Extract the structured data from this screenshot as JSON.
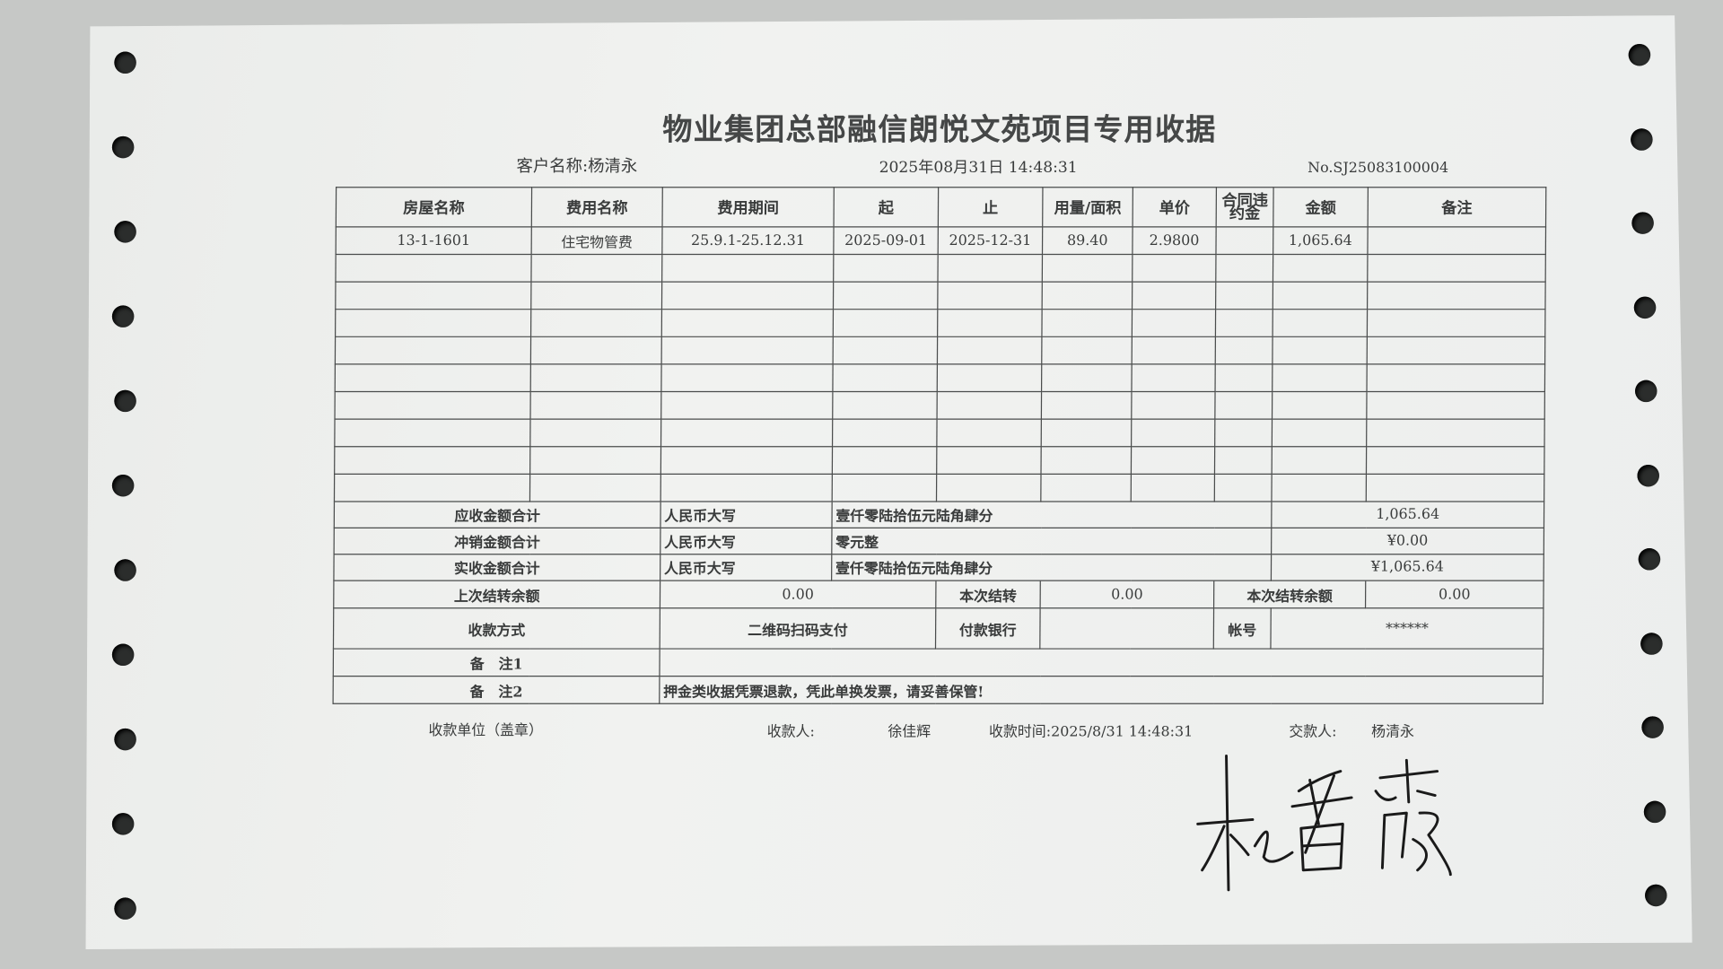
{
  "receipt": {
    "title": "物业集团总部融信朗悦文苑项目专用收据",
    "customer": "客户名称:杨清永",
    "datetime": "2025年08月31日 14:48:31",
    "number": "No.SJ25083100004",
    "columns": [
      "房屋名称",
      "费用名称",
      "费用期间",
      "起",
      "止",
      "用量/面积",
      "单价",
      "合同违约金",
      "金额",
      "备注"
    ],
    "rows": [
      [
        "13-1-1601",
        "住宅物管费",
        "25.9.1-25.12.31",
        "2025-09-01",
        "2025-12-31",
        "89.40",
        "2.9800",
        "",
        "1,065.64",
        ""
      ]
    ],
    "totals": [
      {
        "label": "应收金额合计",
        "rmb_label": "人民币大写",
        "words": "壹仟零陆拾伍元陆角肆分",
        "amount": "1,065.64"
      },
      {
        "label": "冲销金额合计",
        "rmb_label": "人民币大写",
        "words": "零元整",
        "amount": "¥0.00"
      },
      {
        "label": "实收金额合计",
        "rmb_label": "人民币大写",
        "words": "壹仟零陆拾伍元陆角肆分",
        "amount": "¥1,065.64"
      }
    ],
    "balance": {
      "prev_label": "上次结转余额",
      "prev": "0.00",
      "cur_label": "本次结转",
      "cur": "0.00",
      "rem_label": "本次结转余额",
      "rem": "0.00"
    },
    "payment": {
      "label": "收款方式",
      "method": "二维码扫码支付",
      "bank_label": "付款银行",
      "bank": "",
      "account_label": "帐号",
      "account": "******"
    },
    "remark1": {
      "label": "备　注1",
      "value": ""
    },
    "remark2": {
      "label": "备　注2",
      "value": "押金类收据凭票退款，凭此单换发票，请妥善保管!"
    },
    "footer": {
      "unit": "收款单位（盖章）",
      "payee_label": "收款人:",
      "payee": "徐佳辉",
      "time": "收款时间:2025/8/31 14:48:31",
      "payer_label": "交款人:",
      "payer": "杨清永"
    },
    "signature": "杜春霞"
  }
}
